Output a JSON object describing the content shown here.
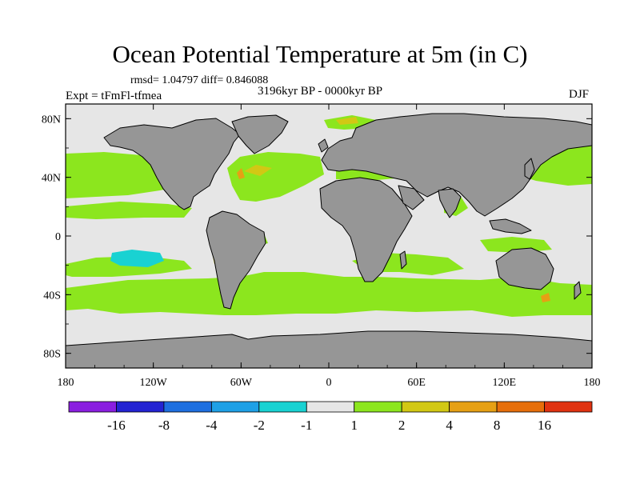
{
  "title": "Ocean Potential Temperature at 5m (in C)",
  "stats": "rmsd= 1.04797  diff= 0.846088",
  "experiment": "Expt = tFmFl-tfmea",
  "period": "3196kyr BP - 0000kyr BP",
  "season": "DJF",
  "axes": {
    "x_ticks": [
      {
        "label": "180",
        "lon": -180
      },
      {
        "label": "120W",
        "lon": -120
      },
      {
        "label": "60W",
        "lon": -60
      },
      {
        "label": "0",
        "lon": 0
      },
      {
        "label": "60E",
        "lon": 60
      },
      {
        "label": "120E",
        "lon": 120
      },
      {
        "label": "180",
        "lon": 180
      }
    ],
    "y_ticks": [
      {
        "label": "80N",
        "lat": 80
      },
      {
        "label": "40N",
        "lat": 40
      },
      {
        "label": "0",
        "lat": 0
      },
      {
        "label": "40S",
        "lat": -40
      },
      {
        "label": "80S",
        "lat": -80
      }
    ]
  },
  "colorbar": {
    "colors": [
      "#8a1ee0",
      "#2323d2",
      "#1e6fe0",
      "#1ea0e6",
      "#19d2d2",
      "#e6e6e6",
      "#8ce61e",
      "#d2c814",
      "#e6a014",
      "#e66e0a",
      "#e03210"
    ],
    "labels": [
      "-16",
      "-8",
      "-4",
      "-2",
      "-1",
      "1",
      "2",
      "4",
      "8",
      "16"
    ]
  },
  "colors": {
    "land": "#969696",
    "ocean_neutral": "#e6e6e6",
    "warm_green": "#8ce61e",
    "warm_yellow": "#d2c814",
    "warm_orange": "#e6a014",
    "cool_cyan": "#19d2d2"
  }
}
